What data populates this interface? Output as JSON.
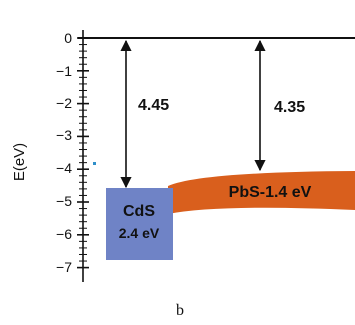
{
  "axis": {
    "label": "E(eV)",
    "ticks": [
      "0",
      "−1",
      "−2",
      "−3",
      "−4",
      "−5",
      "−6",
      "−7"
    ]
  },
  "arrows": [
    {
      "label": "4.45"
    },
    {
      "label": "4.35"
    }
  ],
  "bands": {
    "cds": {
      "line1": "CdS",
      "line2": "2.4 eV",
      "color": "#6f83c6"
    },
    "pbs": {
      "label": "PbS-1.4 eV",
      "color": "#d95f1d"
    }
  },
  "caption": "b"
}
